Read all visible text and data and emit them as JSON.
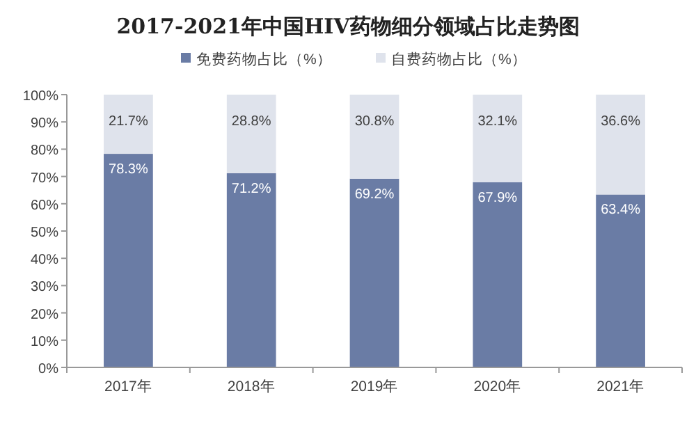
{
  "chart_data": {
    "type": "bar",
    "title": "2017-2021年中国HIV药物细分领域占比走势图",
    "categories": [
      "2017年",
      "2018年",
      "2019年",
      "2020年",
      "2021年"
    ],
    "stacked": true,
    "series": [
      {
        "name": "免费药物占比（%）",
        "color": "#6a7ca5",
        "values": [
          78.3,
          71.2,
          69.2,
          67.9,
          63.4
        ],
        "value_labels": [
          "78.3%",
          "71.2%",
          "69.2%",
          "67.9%",
          "63.4%"
        ]
      },
      {
        "name": "自费药物占比（%）",
        "color": "#dfe3ec",
        "values": [
          21.7,
          28.8,
          30.8,
          32.1,
          36.6
        ],
        "value_labels": [
          "21.7%",
          "28.8%",
          "30.8%",
          "32.1%",
          "36.6%"
        ]
      }
    ],
    "ylim": [
      0,
      100
    ],
    "yticks": [
      {
        "value": 0,
        "label": "0%"
      },
      {
        "value": 10,
        "label": "10%"
      },
      {
        "value": 20,
        "label": "20%"
      },
      {
        "value": 30,
        "label": "30%"
      },
      {
        "value": 40,
        "label": "40%"
      },
      {
        "value": 50,
        "label": "50%"
      },
      {
        "value": 60,
        "label": "60%"
      },
      {
        "value": 70,
        "label": "70%"
      },
      {
        "value": 80,
        "label": "80%"
      },
      {
        "value": 90,
        "label": "90%"
      },
      {
        "value": 100,
        "label": "100%"
      }
    ],
    "legend": "top"
  }
}
